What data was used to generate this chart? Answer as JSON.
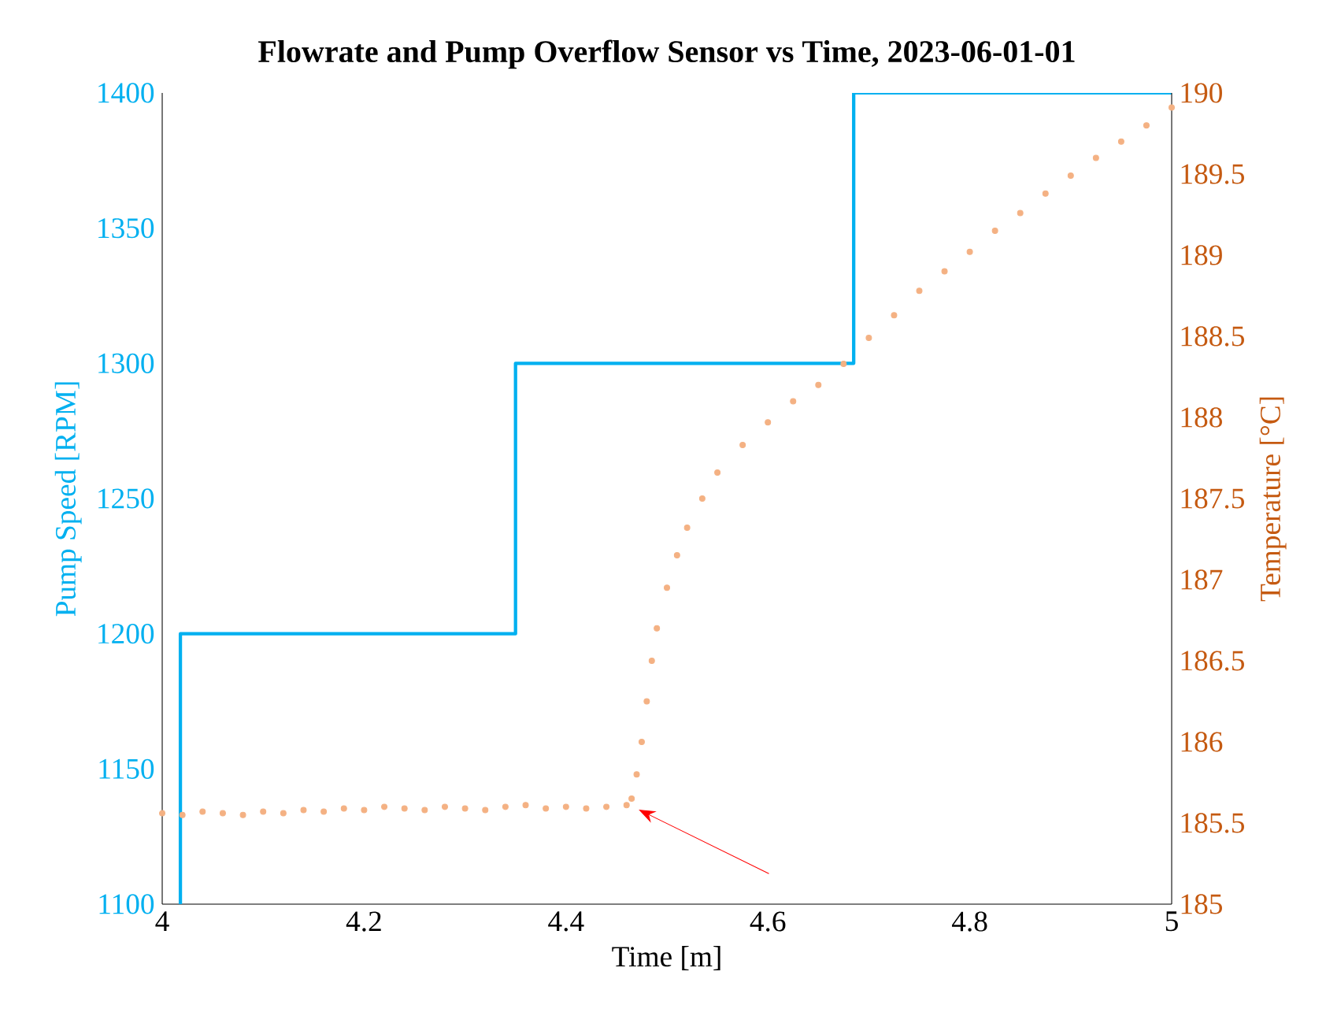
{
  "chart_data": {
    "type": "line",
    "title": "Flowrate and Pump Overflow Sensor vs Time, 2023-06-01-01",
    "xlabel": "Time [m]",
    "ylabel": "Pump Speed [RPM]",
    "y2label": "Temperature [°C]",
    "xlim": [
      4,
      5
    ],
    "xticks": [
      4,
      4.2,
      4.4,
      4.6,
      4.8,
      5
    ],
    "ylim": [
      1100,
      1400
    ],
    "yticks": [
      1100,
      1150,
      1200,
      1250,
      1300,
      1350,
      1400
    ],
    "y2lim": [
      185,
      190
    ],
    "y2ticks": [
      185,
      185.5,
      186,
      186.5,
      187,
      187.5,
      188,
      188.5,
      189,
      189.5,
      190
    ],
    "series": [
      {
        "color": "#00b0f0",
        "axis": "y",
        "marker": "none",
        "x": [
          4.018,
          4.018,
          4.35,
          4.35,
          4.685,
          4.685,
          5
        ],
        "values": [
          1100,
          1200,
          1200,
          1300,
          1300,
          1400,
          1400
        ]
      },
      {
        "type": "scatter",
        "color": "#f4b183",
        "axis": "y2",
        "marker": "circle",
        "x": [
          4.0,
          4.02,
          4.04,
          4.06,
          4.08,
          4.1,
          4.12,
          4.14,
          4.16,
          4.18,
          4.2,
          4.22,
          4.24,
          4.26,
          4.28,
          4.3,
          4.32,
          4.34,
          4.36,
          4.38,
          4.4,
          4.42,
          4.44,
          4.46,
          4.465,
          4.47,
          4.475,
          4.48,
          4.485,
          4.49,
          4.5,
          4.51,
          4.52,
          4.535,
          4.55,
          4.575,
          4.6,
          4.625,
          4.65,
          4.675,
          4.7,
          4.725,
          4.75,
          4.775,
          4.8,
          4.825,
          4.85,
          4.875,
          4.9,
          4.925,
          4.95,
          4.975,
          5.0
        ],
        "values": [
          185.56,
          185.55,
          185.57,
          185.56,
          185.55,
          185.57,
          185.56,
          185.58,
          185.57,
          185.59,
          185.58,
          185.6,
          185.59,
          185.58,
          185.6,
          185.59,
          185.58,
          185.6,
          185.61,
          185.59,
          185.6,
          185.59,
          185.6,
          185.61,
          185.65,
          185.8,
          186.0,
          186.25,
          186.5,
          186.7,
          186.95,
          187.15,
          187.32,
          187.5,
          187.66,
          187.83,
          187.97,
          188.1,
          188.2,
          188.33,
          188.49,
          188.63,
          188.78,
          188.9,
          189.02,
          189.15,
          189.26,
          189.38,
          189.49,
          189.6,
          189.7,
          189.8,
          189.91
        ]
      }
    ]
  }
}
